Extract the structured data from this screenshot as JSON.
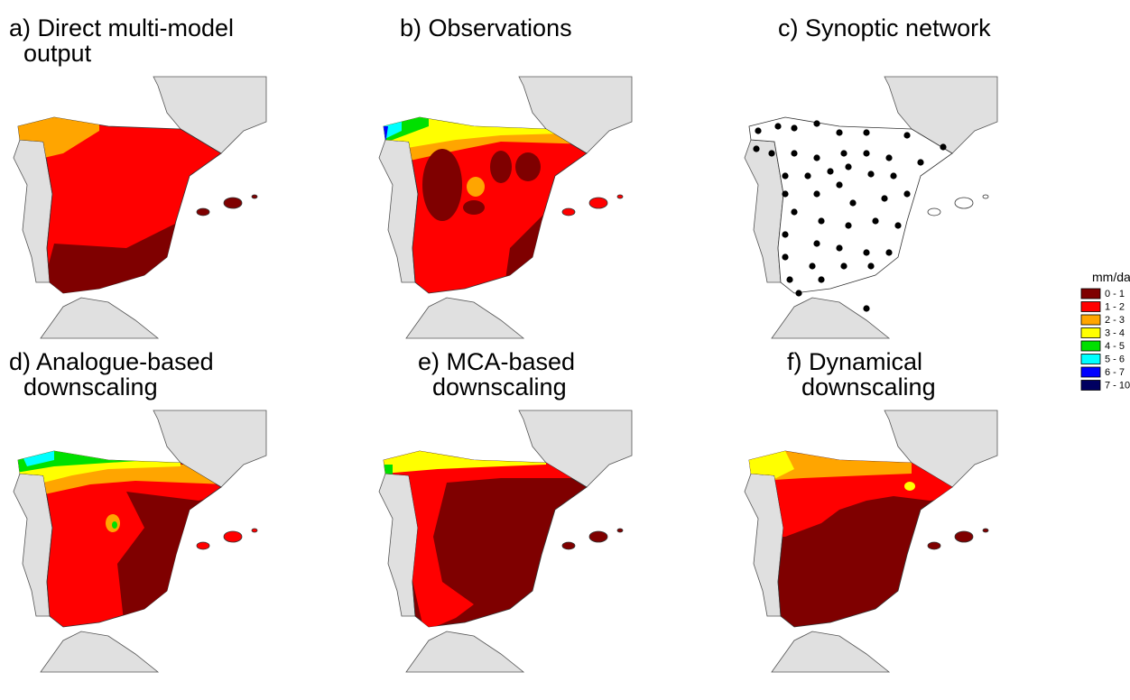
{
  "panels": [
    {
      "title_lines": [
        "a) Direct multi-model",
        "output"
      ]
    },
    {
      "title_lines": [
        "b) Observations"
      ]
    },
    {
      "title_lines": [
        "c) Synoptic network"
      ]
    },
    {
      "title_lines": [
        "d) Analogue-based",
        "downscaling"
      ]
    },
    {
      "title_lines": [
        "e) MCA-based",
        "downscaling"
      ]
    },
    {
      "title_lines": [
        "f) Dynamical",
        "downscaling"
      ]
    }
  ],
  "legend": {
    "title": "mm/day",
    "items": [
      {
        "label": "0 - 1",
        "color": "#7f0000"
      },
      {
        "label": "1 - 2",
        "color": "#ff0000"
      },
      {
        "label": "2 - 3",
        "color": "#ffa500"
      },
      {
        "label": "3 - 4",
        "color": "#ffff00"
      },
      {
        "label": "4 - 5",
        "color": "#00e000"
      },
      {
        "label": "5 - 6",
        "color": "#00ffff"
      },
      {
        "label": "6 - 7",
        "color": "#0000ff"
      },
      {
        "label": "7 - 10",
        "color": "#000060"
      }
    ]
  }
}
